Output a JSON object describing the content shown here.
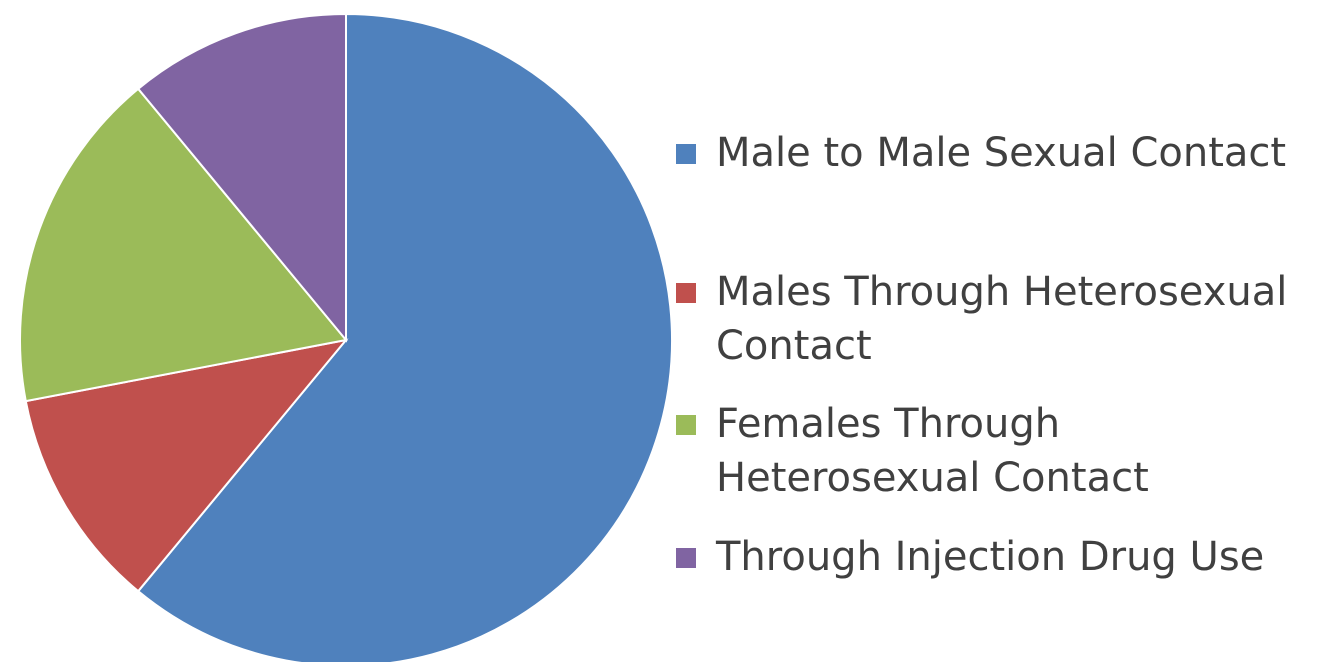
{
  "chart_data": {
    "type": "pie",
    "title": "",
    "legend_position": "right",
    "start_angle_deg": 0,
    "slices": [
      {
        "label": "Male to Male Sexual Contact",
        "value": 61,
        "color": "#4f81bd"
      },
      {
        "label": "Males Through Heterosexual Contact",
        "value": 11,
        "color": "#c0504d"
      },
      {
        "label": "Females Through Heterosexual Contact",
        "value": 17,
        "color": "#9bbb59"
      },
      {
        "label": "Through Injection Drug Use",
        "value": 11,
        "color": "#8064a2"
      }
    ]
  }
}
